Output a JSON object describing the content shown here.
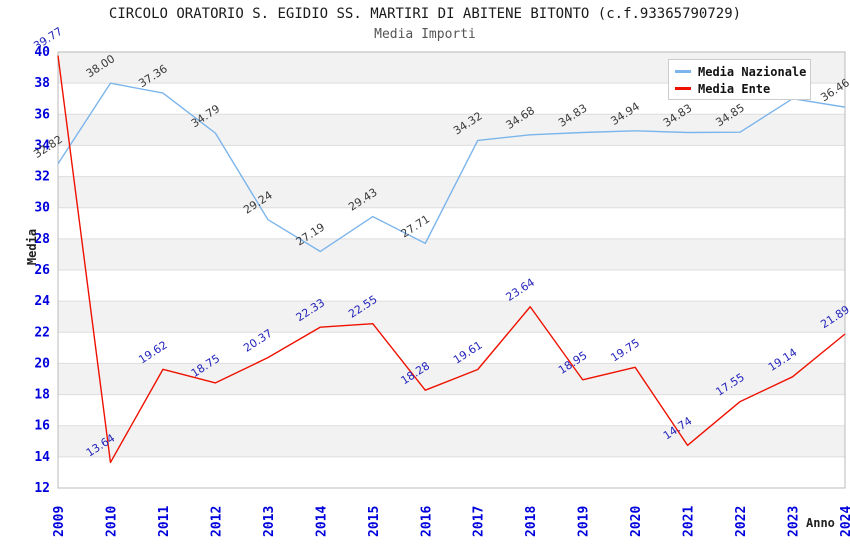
{
  "page": {
    "title": "CIRCOLO ORATORIO S. EGIDIO SS. MARTIRI DI ABITENE BITONTO (c.f.93365790729)",
    "subtitle": "Media Importi"
  },
  "legend": {
    "items": [
      {
        "label": "Media Nazionale",
        "color": "#7cb5ec"
      },
      {
        "label": "Media Ente",
        "color": "#ee1100"
      }
    ]
  },
  "colors": {
    "band_gray": "#f2f2f2",
    "band_white": "#ffffff",
    "gridline": "#dddddd",
    "plot_border": "#bbbbbb",
    "axis_tick_text": "#0000dd",
    "nazionale_line": "#7cb5ec",
    "ente_line": "#ee1100",
    "nazionale_label_text": "#3a3a3a",
    "ente_label_text": "#2424bc"
  },
  "chart_data": {
    "type": "line",
    "title": "CIRCOLO ORATORIO S. EGIDIO SS. MARTIRI DI ABITENE BITONTO (c.f.93365790729)",
    "subtitle": "Media Importi",
    "xlabel": "Anno",
    "ylabel": "Media",
    "ylim": [
      12,
      40
    ],
    "ytick_step": 2,
    "grid": "horizontal gridlines with alternating gray/white bands every 2 units",
    "legend_position": "top-right",
    "categories": [
      "2009",
      "2010",
      "2011",
      "2012",
      "2013",
      "2014",
      "2015",
      "2016",
      "2017",
      "2018",
      "2019",
      "2020",
      "2021",
      "2022",
      "2023",
      "2024"
    ],
    "series": [
      {
        "name": "Media Nazionale",
        "color": "#7cb5ec",
        "label_color": "#3a3a3a",
        "values": [
          32.82,
          38.0,
          37.36,
          34.79,
          29.24,
          27.19,
          29.43,
          27.71,
          34.32,
          34.68,
          34.83,
          34.94,
          34.83,
          34.85,
          37.0,
          36.46
        ],
        "labels": [
          "32.82",
          "38.00",
          "37.36",
          "34.79",
          "29.24",
          "27.19",
          "29.43",
          "27.71",
          "34.32",
          "34.68",
          "34.83",
          "34.94",
          "34.83",
          "34.85",
          "",
          "36.46"
        ],
        "note_2023": "2023 point label hidden behind legend box in original"
      },
      {
        "name": "Media Ente",
        "color": "#ee1100",
        "label_color": "#2424bc",
        "values": [
          39.77,
          13.64,
          19.62,
          18.75,
          20.37,
          22.33,
          22.55,
          18.28,
          19.61,
          23.64,
          18.95,
          19.75,
          14.74,
          17.55,
          19.14,
          21.89
        ],
        "labels": [
          "39.77",
          "13.64",
          "19.62",
          "18.75",
          "20.37",
          "22.33",
          "22.55",
          "18.28",
          "19.61",
          "23.64",
          "18.95",
          "19.75",
          "14.74",
          "17.55",
          "19.14",
          "21.89"
        ]
      }
    ]
  }
}
